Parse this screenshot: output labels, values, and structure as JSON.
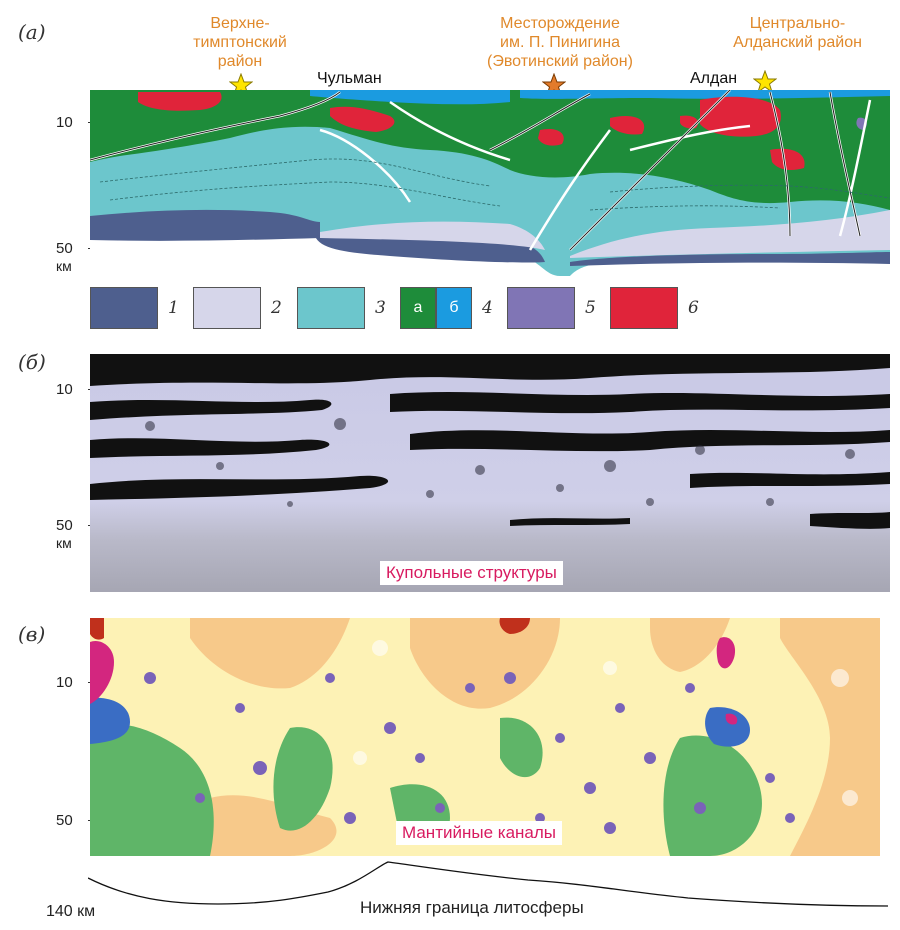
{
  "panels": {
    "a": "(а)",
    "b": "(б)",
    "v": "(в)"
  },
  "panel_a": {
    "locations": {
      "verkhne": "Верхне-\nтимптонский\nрайон",
      "deposit": "Месторождение\nим. П. Пинигина\n(Эвотинский район)",
      "central": "Центрально-\nАлданский район"
    },
    "towns": {
      "chulman": "Чульман",
      "aldan": "Алдан"
    },
    "ticks": {
      "t10": "10",
      "t50": "50",
      "unit": "км"
    },
    "legend": [
      {
        "num": "1",
        "color": "#4e5f8e"
      },
      {
        "num": "2",
        "color": "#d6d6ea"
      },
      {
        "num": "3",
        "color": "#6cc6cc"
      },
      {
        "num": "4",
        "color": "#1e8c3a",
        "sub_a": "а",
        "sub_b": "б",
        "color_b": "#1b9be0"
      },
      {
        "num": "5",
        "color": "#8075b5"
      },
      {
        "num": "6",
        "color": "#e0243a"
      }
    ]
  },
  "panel_b": {
    "ticks": {
      "t10": "10",
      "t50": "50",
      "unit": "км"
    },
    "label": "Купольные структуры"
  },
  "panel_v": {
    "ticks": {
      "t10": "10",
      "t50": "50"
    },
    "label": "Мантийные каналы"
  },
  "lithosphere": {
    "depth_label": "140 км",
    "caption": "Нижняя граница литосферы"
  },
  "colors": {
    "orange_text": "#e0892b",
    "magenta_text": "#d81b60",
    "star_yellow": "#ffe400",
    "star_orange": "#e27b2b"
  }
}
